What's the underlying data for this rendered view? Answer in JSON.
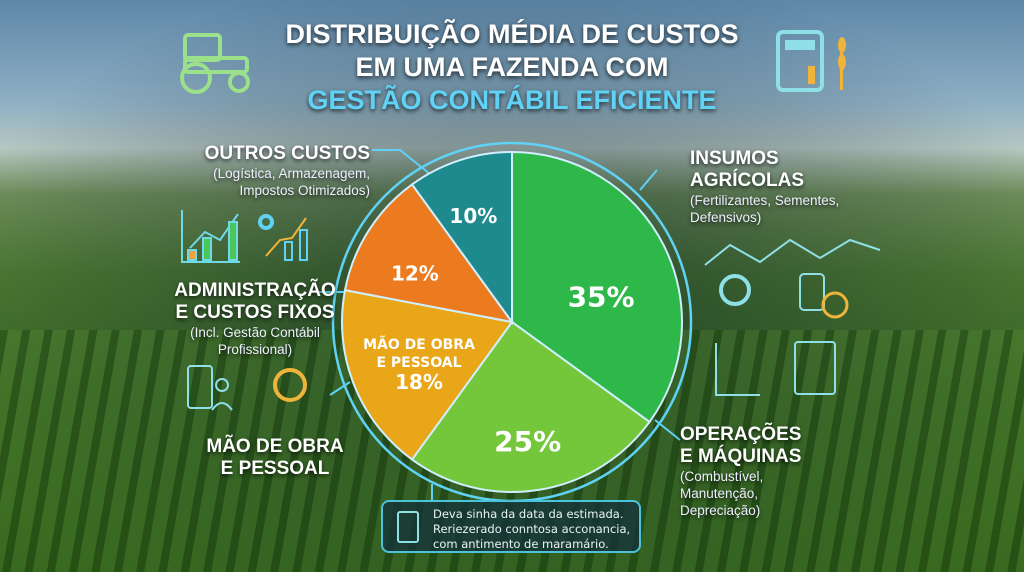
{
  "title": {
    "line1": "DISTRIBUIÇÃO MÉDIA DE CUSTOS",
    "line2": "EM UMA FAZENDA COM",
    "line3": "GESTÃO CONTÁBIL EFICIENTE"
  },
  "colors": {
    "insumos": "#2fb84a",
    "operacoes": "#74c63a",
    "mao_de_obra": "#e9a619",
    "administracao": "#ec7a1e",
    "outros": "#1f8a8e",
    "accent": "#5fd2f5"
  },
  "chart_data": {
    "type": "pie",
    "title": "Distribuição Média de Custos em uma Fazenda com Gestão Contábil Eficiente",
    "start": "top",
    "direction": "clockwise",
    "slices": [
      {
        "key": "insumos",
        "name": "Insumos Agrícolas",
        "value": 35,
        "label": "35%"
      },
      {
        "key": "operacoes",
        "name": "Operações e Máquinas",
        "value": 25,
        "label": "25%"
      },
      {
        "key": "mao_de_obra",
        "name": "Mão de Obra e Pessoal",
        "value": 18,
        "label": "18%",
        "inner_label": "MÃO DE OBRA E PESSOAL"
      },
      {
        "key": "administracao",
        "name": "Administração e Custos Fixos",
        "value": 12,
        "label": "12%"
      },
      {
        "key": "outros",
        "name": "Outros Custos",
        "value": 10,
        "label": "10%"
      }
    ]
  },
  "labels": {
    "outros": {
      "title": "OUTROS CUSTOS",
      "sub1": "(Logística, Armazenagem,",
      "sub2": "Impostos Otimizados)"
    },
    "admin": {
      "title1": "ADMINISTRAÇÃO",
      "title2": "E CUSTOS FIXOS",
      "sub1": "(Incl. Gestão Contábil",
      "sub2": "Profissional)"
    },
    "mao": {
      "title1": "MÃO DE OBRA",
      "title2": "E PESSOAL"
    },
    "insumos": {
      "title1": "INSUMOS",
      "title2": "AGRÍCOLAS",
      "sub1": "(Fertilizantes, Sementes,",
      "sub2": "Defensivos)"
    },
    "operacoes": {
      "title1": "OPERAÇÕES",
      "title2": "E MÁQUINAS",
      "sub1": "(Combustível,",
      "sub2": "Manutenção,",
      "sub3": "Depreciação)"
    },
    "inner_mao1": "MÃO DE OBRA",
    "inner_mao2": "E PESSOAL"
  },
  "note": {
    "line1": "Deva sinha da data da estimada.",
    "line2": "Reriezerado conntosa acconancia,",
    "line3": "com antimento de maramário."
  }
}
